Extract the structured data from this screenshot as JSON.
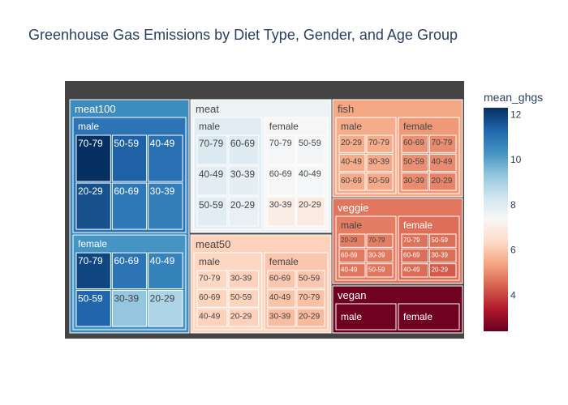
{
  "title": "Greenhouse Gas Emissions by Diet Type, Gender, and Age Group",
  "chart_data": {
    "type": "treemap",
    "title": "Greenhouse Gas Emissions by Diet Type, Gender, and Age Group",
    "colorscale": "RdBu",
    "color_variable": "mean_ghgs",
    "colorbar": {
      "title": "mean_ghgs",
      "range": [
        2.4,
        12.3
      ],
      "ticks": [
        4,
        6,
        8,
        10,
        12
      ]
    },
    "diets": [
      {
        "name": "meat100",
        "value": 10.5,
        "genders": [
          {
            "name": "male",
            "value": 11.0,
            "groups": [
              {
                "name": "70-79",
                "value": 12.3
              },
              {
                "name": "50-59",
                "value": 11.4
              },
              {
                "name": "40-49",
                "value": 11.1
              },
              {
                "name": "20-29",
                "value": 11.7
              },
              {
                "name": "60-69",
                "value": 10.9
              },
              {
                "name": "30-39",
                "value": 10.8
              }
            ]
          },
          {
            "name": "female",
            "value": 10.3,
            "groups": [
              {
                "name": "70-79",
                "value": 11.9
              },
              {
                "name": "60-69",
                "value": 11.0
              },
              {
                "name": "40-49",
                "value": 10.7
              },
              {
                "name": "50-59",
                "value": 11.3
              },
              {
                "name": "30-39",
                "value": 9.3
              },
              {
                "name": "20-29",
                "value": 8.9
              }
            ]
          }
        ]
      },
      {
        "name": "meat",
        "value": 7.6,
        "genders": [
          {
            "name": "male",
            "value": 7.9,
            "groups": [
              {
                "name": "70-79",
                "value": 8.1
              },
              {
                "name": "60-69",
                "value": 8.0
              },
              {
                "name": "40-49",
                "value": 7.9
              },
              {
                "name": "30-39",
                "value": 7.85
              },
              {
                "name": "50-59",
                "value": 7.9
              },
              {
                "name": "20-29",
                "value": 7.75
              }
            ]
          },
          {
            "name": "female",
            "value": 7.3,
            "groups": [
              {
                "name": "70-79",
                "value": 7.4
              },
              {
                "name": "50-59",
                "value": 7.45
              },
              {
                "name": "60-69",
                "value": 7.35
              },
              {
                "name": "40-49",
                "value": 7.4
              },
              {
                "name": "30-39",
                "value": 7.0
              },
              {
                "name": "20-29",
                "value": 6.9
              }
            ]
          }
        ]
      },
      {
        "name": "meat50",
        "value": 6.2,
        "genders": [
          {
            "name": "male",
            "value": 6.3,
            "groups": [
              {
                "name": "70-79",
                "value": 6.3
              },
              {
                "name": "30-39",
                "value": 6.2
              },
              {
                "name": "60-69",
                "value": 6.25
              },
              {
                "name": "50-59",
                "value": 6.25
              },
              {
                "name": "40-49",
                "value": 6.2
              },
              {
                "name": "20-29",
                "value": 6.2
              }
            ]
          },
          {
            "name": "female",
            "value": 6.0,
            "groups": [
              {
                "name": "60-69",
                "value": 6.0
              },
              {
                "name": "50-59",
                "value": 6.0
              },
              {
                "name": "40-49",
                "value": 5.95
              },
              {
                "name": "70-79",
                "value": 5.9
              },
              {
                "name": "30-39",
                "value": 5.8
              },
              {
                "name": "20-29",
                "value": 5.75
              }
            ]
          }
        ]
      },
      {
        "name": "fish",
        "value": 5.4,
        "genders": [
          {
            "name": "male",
            "value": 5.5,
            "groups": [
              {
                "name": "20-29",
                "value": 5.5
              },
              {
                "name": "70-79",
                "value": 5.5
              },
              {
                "name": "40-49",
                "value": 5.5
              },
              {
                "name": "30-39",
                "value": 5.45
              },
              {
                "name": "60-69",
                "value": 5.5
              },
              {
                "name": "50-59",
                "value": 5.45
              }
            ]
          },
          {
            "name": "female",
            "value": 5.2,
            "groups": [
              {
                "name": "60-69",
                "value": 5.1
              },
              {
                "name": "70-79",
                "value": 5.0
              },
              {
                "name": "50-59",
                "value": 5.05
              },
              {
                "name": "40-49",
                "value": 5.0
              },
              {
                "name": "30-39",
                "value": 5.0
              },
              {
                "name": "20-29",
                "value": 4.9
              }
            ]
          }
        ]
      },
      {
        "name": "veggie",
        "value": 4.7,
        "genders": [
          {
            "name": "male",
            "value": 4.8,
            "groups": [
              {
                "name": "20-29",
                "value": 4.8
              },
              {
                "name": "70-79",
                "value": 4.8
              },
              {
                "name": "60-69",
                "value": 4.75
              },
              {
                "name": "30-39",
                "value": 4.75
              },
              {
                "name": "40-49",
                "value": 4.7
              },
              {
                "name": "50-59",
                "value": 4.7
              }
            ]
          },
          {
            "name": "female",
            "value": 4.6,
            "groups": [
              {
                "name": "70-79",
                "value": 4.65
              },
              {
                "name": "50-59",
                "value": 4.6
              },
              {
                "name": "60-69",
                "value": 4.6
              },
              {
                "name": "30-39",
                "value": 4.6
              },
              {
                "name": "40-49",
                "value": 4.55
              },
              {
                "name": "20-29",
                "value": 4.3
              }
            ]
          }
        ]
      },
      {
        "name": "vegan",
        "value": 2.5,
        "genders": [
          {
            "name": "male",
            "value": 2.5,
            "groups": []
          },
          {
            "name": "female",
            "value": 2.5,
            "groups": []
          }
        ]
      }
    ]
  }
}
